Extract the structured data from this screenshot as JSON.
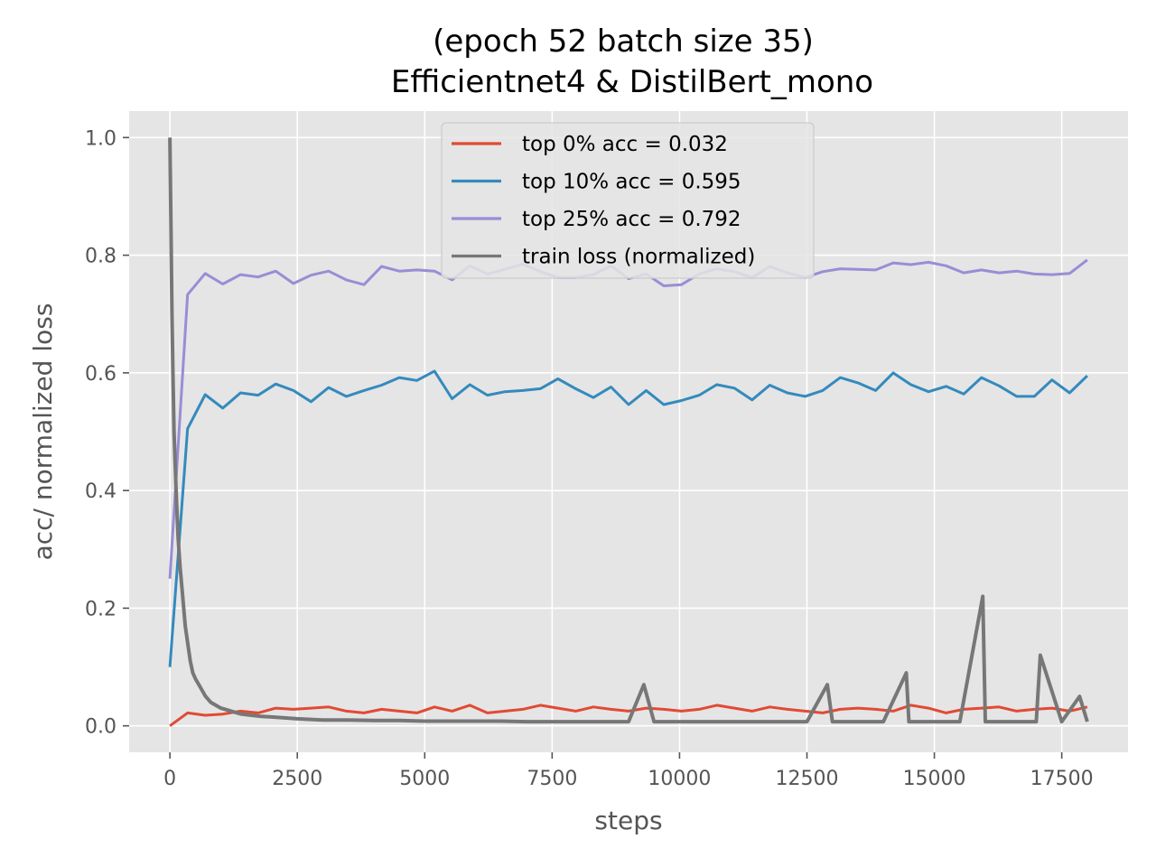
{
  "chart_data": {
    "type": "line",
    "title": [
      "(epoch 52 batch size 35)",
      "Efficientnet4 & DistilBert_mono"
    ],
    "xlabel": "steps",
    "ylabel": "acc/ normalized loss",
    "xlim": [
      -800,
      18800
    ],
    "ylim": [
      -0.045,
      1.045
    ],
    "xticks": [
      0,
      2500,
      5000,
      7500,
      10000,
      12500,
      15000,
      17500
    ],
    "xtick_labels": [
      "0",
      "2500",
      "5000",
      "7500",
      "10000",
      "12500",
      "15000",
      "17500"
    ],
    "yticks": [
      0.0,
      0.2,
      0.4,
      0.6,
      0.8,
      1.0
    ],
    "ytick_labels": [
      "0.0",
      "0.2",
      "0.4",
      "0.6",
      "0.8",
      "1.0"
    ],
    "grid": true,
    "legend_position": "top-center",
    "series": [
      {
        "name": "top 0% acc = 0.032",
        "color": "#e24a33",
        "x": [
          0,
          346,
          692,
          1038,
          1385,
          1731,
          2077,
          2423,
          2769,
          3115,
          3462,
          3808,
          4154,
          4500,
          4846,
          5192,
          5538,
          5885,
          6231,
          6577,
          6923,
          7269,
          7615,
          7962,
          8308,
          8654,
          9000,
          9346,
          9692,
          10038,
          10385,
          10731,
          11077,
          11423,
          11769,
          12115,
          12462,
          12808,
          13154,
          13500,
          13846,
          14192,
          14538,
          14885,
          15231,
          15577,
          15923,
          16269,
          16615,
          16962,
          17308,
          17654,
          18000
        ],
        "y": [
          0.0,
          0.022,
          0.018,
          0.02,
          0.025,
          0.022,
          0.03,
          0.028,
          0.03,
          0.032,
          0.025,
          0.022,
          0.028,
          0.025,
          0.022,
          0.032,
          0.025,
          0.035,
          0.022,
          0.025,
          0.028,
          0.035,
          0.03,
          0.025,
          0.032,
          0.028,
          0.025,
          0.03,
          0.028,
          0.025,
          0.028,
          0.035,
          0.03,
          0.025,
          0.032,
          0.028,
          0.025,
          0.022,
          0.028,
          0.03,
          0.028,
          0.025,
          0.035,
          0.03,
          0.022,
          0.028,
          0.03,
          0.032,
          0.025,
          0.028,
          0.03,
          0.025,
          0.032
        ]
      },
      {
        "name": "top 10% acc = 0.595",
        "color": "#348abd",
        "x": [
          0,
          346,
          692,
          1038,
          1385,
          1731,
          2077,
          2423,
          2769,
          3115,
          3462,
          3808,
          4154,
          4500,
          4846,
          5192,
          5538,
          5885,
          6231,
          6577,
          6923,
          7269,
          7615,
          7962,
          8308,
          8654,
          9000,
          9346,
          9692,
          10038,
          10385,
          10731,
          11077,
          11423,
          11769,
          12115,
          12462,
          12808,
          13154,
          13500,
          13846,
          14192,
          14538,
          14885,
          15231,
          15577,
          15923,
          16269,
          16615,
          16962,
          17308,
          17654,
          18000
        ],
        "y": [
          0.1,
          0.505,
          0.563,
          0.54,
          0.566,
          0.562,
          0.581,
          0.57,
          0.551,
          0.575,
          0.56,
          0.57,
          0.579,
          0.592,
          0.587,
          0.603,
          0.556,
          0.58,
          0.562,
          0.568,
          0.57,
          0.573,
          0.59,
          0.573,
          0.558,
          0.576,
          0.546,
          0.57,
          0.546,
          0.553,
          0.562,
          0.58,
          0.574,
          0.554,
          0.579,
          0.566,
          0.56,
          0.57,
          0.592,
          0.583,
          0.57,
          0.6,
          0.58,
          0.568,
          0.577,
          0.564,
          0.592,
          0.578,
          0.56,
          0.56,
          0.588,
          0.566,
          0.595
        ]
      },
      {
        "name": "top 25% acc = 0.792",
        "color": "#988ed5",
        "x": [
          0,
          346,
          692,
          1038,
          1385,
          1731,
          2077,
          2423,
          2769,
          3115,
          3462,
          3808,
          4154,
          4500,
          4846,
          5192,
          5538,
          5885,
          6231,
          6577,
          6923,
          7269,
          7615,
          7962,
          8308,
          8654,
          9000,
          9346,
          9692,
          10038,
          10385,
          10731,
          11077,
          11423,
          11769,
          12115,
          12462,
          12808,
          13154,
          13500,
          13846,
          14192,
          14538,
          14885,
          15231,
          15577,
          15923,
          16269,
          16615,
          16962,
          17308,
          17654,
          18000
        ],
        "y": [
          0.25,
          0.733,
          0.769,
          0.751,
          0.767,
          0.763,
          0.773,
          0.752,
          0.766,
          0.773,
          0.758,
          0.75,
          0.781,
          0.773,
          0.775,
          0.773,
          0.758,
          0.782,
          0.768,
          0.776,
          0.785,
          0.772,
          0.762,
          0.762,
          0.767,
          0.782,
          0.76,
          0.768,
          0.748,
          0.75,
          0.768,
          0.777,
          0.772,
          0.762,
          0.781,
          0.77,
          0.762,
          0.772,
          0.777,
          0.776,
          0.775,
          0.787,
          0.784,
          0.788,
          0.782,
          0.77,
          0.775,
          0.77,
          0.773,
          0.768,
          0.767,
          0.769,
          0.792
        ]
      },
      {
        "name": "train loss (normalized)",
        "color": "#777777",
        "x": [
          0,
          20,
          40,
          60,
          80,
          100,
          130,
          160,
          200,
          250,
          300,
          350,
          400,
          450,
          500,
          600,
          700,
          800,
          900,
          1000,
          1200,
          1400,
          1600,
          1800,
          2000,
          2500,
          3000,
          3500,
          4000,
          4500,
          5000,
          5500,
          6000,
          6500,
          7000,
          7500,
          8000,
          8500,
          9000,
          9300,
          9500,
          10000,
          10500,
          11000,
          11500,
          12000,
          12500,
          12900,
          13000,
          13500,
          14000,
          14450,
          14500,
          15000,
          15500,
          15950,
          16000,
          16500,
          17000,
          17080,
          17500,
          17850,
          18000
        ],
        "y": [
          1.0,
          0.85,
          0.7,
          0.6,
          0.5,
          0.45,
          0.38,
          0.32,
          0.27,
          0.22,
          0.17,
          0.14,
          0.11,
          0.09,
          0.08,
          0.065,
          0.05,
          0.04,
          0.035,
          0.03,
          0.025,
          0.02,
          0.018,
          0.016,
          0.015,
          0.012,
          0.01,
          0.01,
          0.009,
          0.009,
          0.008,
          0.008,
          0.008,
          0.008,
          0.007,
          0.007,
          0.007,
          0.007,
          0.007,
          0.07,
          0.007,
          0.007,
          0.007,
          0.007,
          0.007,
          0.007,
          0.007,
          0.07,
          0.007,
          0.007,
          0.007,
          0.09,
          0.007,
          0.007,
          0.007,
          0.22,
          0.007,
          0.007,
          0.007,
          0.12,
          0.007,
          0.05,
          0.007
        ]
      }
    ]
  }
}
